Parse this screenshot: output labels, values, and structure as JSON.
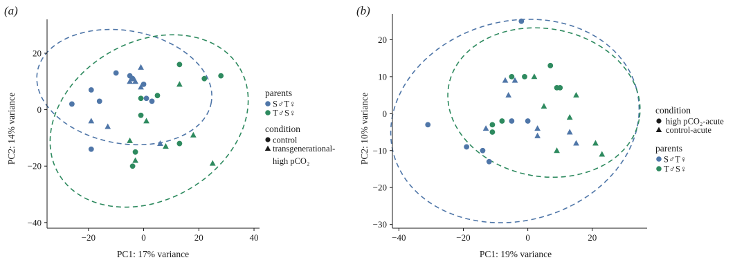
{
  "colors": {
    "blue": "#4f76a8",
    "green": "#2e8a5f",
    "axis": "#1a1a1a"
  },
  "chart_data": [
    {
      "type": "scatter",
      "panel_label": "(a)",
      "xlabel": "PC1: 17% variance",
      "ylabel": "PC2: 14% variance",
      "xlim": [
        -35,
        42
      ],
      "ylim": [
        -42,
        32
      ],
      "xticks": [
        -20,
        0,
        20,
        40
      ],
      "yticks": [
        -40,
        -20,
        0,
        20
      ],
      "legend": [
        {
          "title": "parents",
          "kind": "color",
          "items": [
            {
              "label": "S♂T♀",
              "color": "#4f76a8"
            },
            {
              "label": "T♂S♀",
              "color": "#2e8a5f"
            }
          ]
        },
        {
          "title": "condition",
          "kind": "shape",
          "items": [
            {
              "label": "control",
              "shape": "circle"
            },
            {
              "label": "transgenerational-",
              "label2": "high pCO₂",
              "shape": "triangle"
            }
          ]
        }
      ],
      "ellipses": [
        {
          "group": "S♂T♀",
          "color": "#4f76a8",
          "cx": -7,
          "cy": 8,
          "rx": 32,
          "ry": 20,
          "angle_deg": -10
        },
        {
          "group": "T♂S♀",
          "color": "#2e8a5f",
          "cx": 2,
          "cy": -4,
          "rx": 38,
          "ry": 28,
          "angle_deg": 30
        }
      ],
      "points": [
        {
          "x": -26,
          "y": 2,
          "color": "blue",
          "shape": "circle"
        },
        {
          "x": -19,
          "y": 7,
          "color": "blue",
          "shape": "circle"
        },
        {
          "x": -16,
          "y": 3,
          "color": "blue",
          "shape": "circle"
        },
        {
          "x": -10,
          "y": 13,
          "color": "blue",
          "shape": "circle"
        },
        {
          "x": -5,
          "y": 12,
          "color": "blue",
          "shape": "circle"
        },
        {
          "x": -4,
          "y": 11,
          "color": "blue",
          "shape": "circle"
        },
        {
          "x": 0,
          "y": 9,
          "color": "blue",
          "shape": "circle"
        },
        {
          "x": 1,
          "y": 4,
          "color": "blue",
          "shape": "circle"
        },
        {
          "x": 3,
          "y": 3,
          "color": "blue",
          "shape": "circle"
        },
        {
          "x": -19,
          "y": -14,
          "color": "blue",
          "shape": "circle"
        },
        {
          "x": -5,
          "y": 10,
          "color": "blue",
          "shape": "triangle"
        },
        {
          "x": -3,
          "y": 10,
          "color": "blue",
          "shape": "triangle"
        },
        {
          "x": -1,
          "y": 15,
          "color": "blue",
          "shape": "triangle"
        },
        {
          "x": -1,
          "y": 8,
          "color": "blue",
          "shape": "triangle"
        },
        {
          "x": -19,
          "y": -4,
          "color": "blue",
          "shape": "triangle"
        },
        {
          "x": -13,
          "y": -6,
          "color": "blue",
          "shape": "triangle"
        },
        {
          "x": 6,
          "y": -12,
          "color": "blue",
          "shape": "triangle"
        },
        {
          "x": -1,
          "y": 4,
          "color": "green",
          "shape": "circle"
        },
        {
          "x": 5,
          "y": 5,
          "color": "green",
          "shape": "circle"
        },
        {
          "x": -1,
          "y": -2,
          "color": "green",
          "shape": "circle"
        },
        {
          "x": -3,
          "y": -15,
          "color": "green",
          "shape": "circle"
        },
        {
          "x": -4,
          "y": -20,
          "color": "green",
          "shape": "circle"
        },
        {
          "x": 13,
          "y": 16,
          "color": "green",
          "shape": "circle"
        },
        {
          "x": 22,
          "y": 11,
          "color": "green",
          "shape": "circle"
        },
        {
          "x": 28,
          "y": 12,
          "color": "green",
          "shape": "circle"
        },
        {
          "x": 13,
          "y": -12,
          "color": "green",
          "shape": "circle"
        },
        {
          "x": 13,
          "y": 9,
          "color": "green",
          "shape": "triangle"
        },
        {
          "x": 1,
          "y": -4,
          "color": "green",
          "shape": "triangle"
        },
        {
          "x": -5,
          "y": -11,
          "color": "green",
          "shape": "triangle"
        },
        {
          "x": -3,
          "y": -18,
          "color": "green",
          "shape": "triangle"
        },
        {
          "x": 8,
          "y": -13,
          "color": "green",
          "shape": "triangle"
        },
        {
          "x": 18,
          "y": -9,
          "color": "green",
          "shape": "triangle"
        },
        {
          "x": 25,
          "y": -19,
          "color": "green",
          "shape": "triangle"
        }
      ]
    },
    {
      "type": "scatter",
      "panel_label": "(b)",
      "xlabel": "PC1: 19% variance",
      "ylabel": "PC2: 10% variance",
      "xlim": [
        -42,
        37
      ],
      "ylim": [
        -31,
        27
      ],
      "xticks": [
        -40,
        -20,
        0,
        20
      ],
      "yticks": [
        -30,
        -20,
        -10,
        0,
        10,
        20
      ],
      "legend": [
        {
          "title": "condition",
          "kind": "shape",
          "items": [
            {
              "label": "high pCO₂-acute",
              "shape": "circle"
            },
            {
              "label": "control-acute",
              "shape": "triangle"
            }
          ]
        },
        {
          "title": "parents",
          "kind": "color",
          "items": [
            {
              "label": "S♂T♀",
              "color": "#4f76a8"
            },
            {
              "label": "T♂S♀",
              "color": "#2e8a5f"
            }
          ]
        }
      ],
      "ellipses": [
        {
          "group": "S♂T♀",
          "color": "#4f76a8",
          "cx": -4,
          "cy": -2,
          "rx": 39,
          "ry": 27,
          "angle_deg": 15
        },
        {
          "group": "T♂S♀",
          "color": "#2e8a5f",
          "cx": 5,
          "cy": 3,
          "rx": 30,
          "ry": 20,
          "angle_deg": -10
        }
      ],
      "points": [
        {
          "x": -2,
          "y": 25,
          "color": "blue",
          "shape": "circle"
        },
        {
          "x": -31,
          "y": -3,
          "color": "blue",
          "shape": "circle"
        },
        {
          "x": -19,
          "y": -9,
          "color": "blue",
          "shape": "circle"
        },
        {
          "x": -14,
          "y": -10,
          "color": "blue",
          "shape": "circle"
        },
        {
          "x": -12,
          "y": -13,
          "color": "blue",
          "shape": "circle"
        },
        {
          "x": -5,
          "y": -2,
          "color": "blue",
          "shape": "circle"
        },
        {
          "x": 0,
          "y": -2,
          "color": "blue",
          "shape": "circle"
        },
        {
          "x": -7,
          "y": 9,
          "color": "blue",
          "shape": "triangle"
        },
        {
          "x": -4,
          "y": 9,
          "color": "blue",
          "shape": "triangle"
        },
        {
          "x": -6,
          "y": 5,
          "color": "blue",
          "shape": "triangle"
        },
        {
          "x": -13,
          "y": -4,
          "color": "blue",
          "shape": "triangle"
        },
        {
          "x": 3,
          "y": -4,
          "color": "blue",
          "shape": "triangle"
        },
        {
          "x": 3,
          "y": -6,
          "color": "blue",
          "shape": "triangle"
        },
        {
          "x": 13,
          "y": -5,
          "color": "blue",
          "shape": "triangle"
        },
        {
          "x": 15,
          "y": -8,
          "color": "blue",
          "shape": "triangle"
        },
        {
          "x": -5,
          "y": 10,
          "color": "green",
          "shape": "circle"
        },
        {
          "x": -1,
          "y": 10,
          "color": "green",
          "shape": "circle"
        },
        {
          "x": 7,
          "y": 13,
          "color": "green",
          "shape": "circle"
        },
        {
          "x": 9,
          "y": 7,
          "color": "green",
          "shape": "circle"
        },
        {
          "x": 10,
          "y": 7,
          "color": "green",
          "shape": "circle"
        },
        {
          "x": -8,
          "y": -2,
          "color": "green",
          "shape": "circle"
        },
        {
          "x": -11,
          "y": -3,
          "color": "green",
          "shape": "circle"
        },
        {
          "x": -11,
          "y": -5,
          "color": "green",
          "shape": "circle"
        },
        {
          "x": 2,
          "y": 10,
          "color": "green",
          "shape": "triangle"
        },
        {
          "x": 15,
          "y": 5,
          "color": "green",
          "shape": "triangle"
        },
        {
          "x": 5,
          "y": 2,
          "color": "green",
          "shape": "triangle"
        },
        {
          "x": 13,
          "y": -1,
          "color": "green",
          "shape": "triangle"
        },
        {
          "x": 9,
          "y": -10,
          "color": "green",
          "shape": "triangle"
        },
        {
          "x": 21,
          "y": -8,
          "color": "green",
          "shape": "triangle"
        },
        {
          "x": 23,
          "y": -11,
          "color": "green",
          "shape": "triangle"
        }
      ]
    }
  ]
}
